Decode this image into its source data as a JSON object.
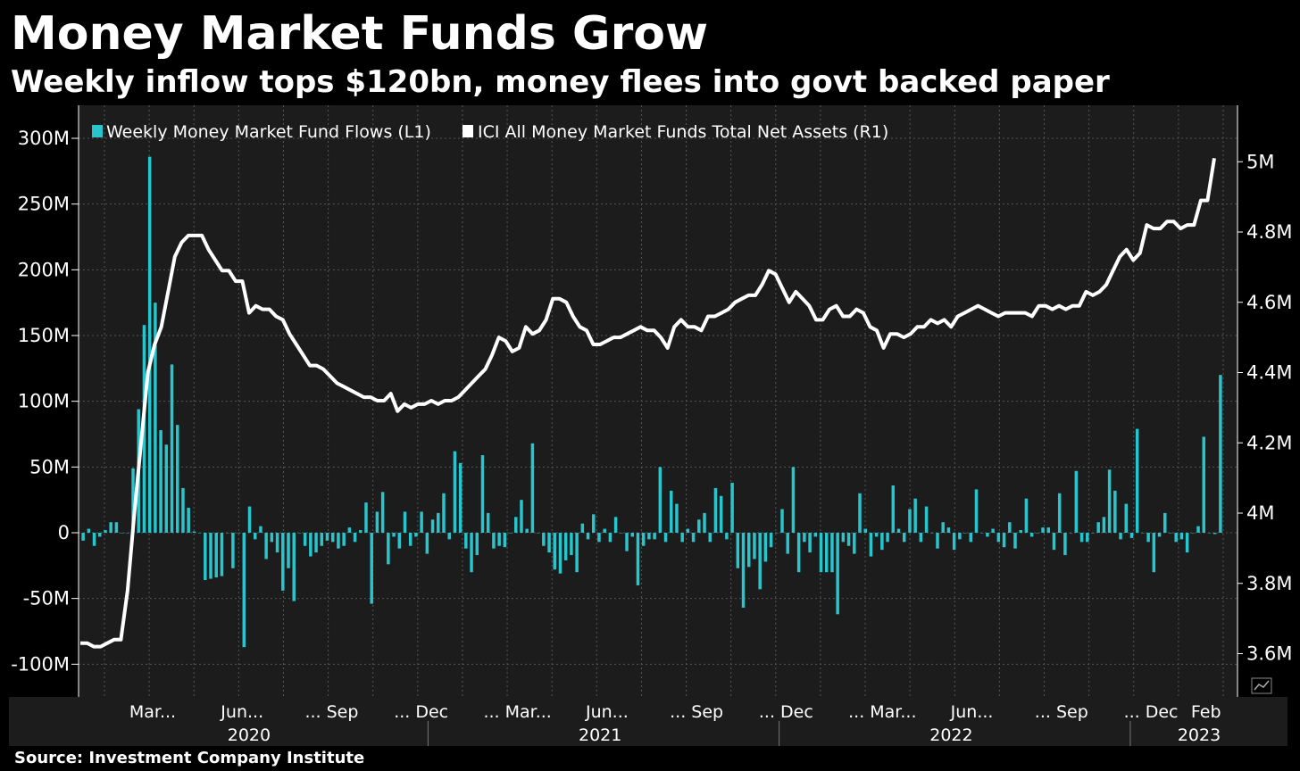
{
  "title": "Money Market Funds Grow",
  "subtitle": "Weekly inflow tops $120bn, money flees into govt backed paper",
  "source": "Source: Investment Company Institute",
  "colors": {
    "flows": "#29c5cc",
    "assets": "#ffffff",
    "background": "#000000",
    "plot": "#1c1c1c",
    "grid": "#555555"
  },
  "icon": "chart-icon",
  "chart_data": {
    "type": "bar-line",
    "legend_position": "top-left",
    "grid": true,
    "legend": [
      "Weekly Money Market Fund Flows (L1)",
      "ICI All Money Market Funds Total Net Assets  (R1)"
    ],
    "y_left": {
      "ticks": [
        300,
        250,
        200,
        150,
        100,
        50,
        0,
        -50,
        -100
      ],
      "labels": [
        "300M",
        "250M",
        "200M",
        "150M",
        "100M",
        "50M",
        "0",
        "-50M",
        "-100M"
      ],
      "range": [
        -125,
        315
      ]
    },
    "y_right": {
      "ticks": [
        5.0,
        4.8,
        4.6,
        4.4,
        4.2,
        4.0,
        3.8,
        3.6
      ],
      "labels": [
        "5M",
        "4.8M",
        "4.6M",
        "4.4M",
        "4.2M",
        "4M",
        "3.8M",
        "3.6M"
      ],
      "range": [
        3.55,
        5.15
      ]
    },
    "x_labels": [
      "Mar...",
      "Jun...",
      "... Sep",
      "... Dec",
      "... Mar...",
      "Jun...",
      "... Sep",
      "... Dec",
      "... Mar...",
      "Jun...",
      "... Sep",
      "... Dec",
      "Feb"
    ],
    "x_label_weeks": [
      10,
      23,
      36,
      49,
      63,
      76,
      89,
      102,
      116,
      129,
      142,
      155,
      163
    ],
    "years": [
      "2020",
      "2021",
      "2022",
      "2023"
    ],
    "year_weeks": [
      24,
      75,
      126,
      162
    ],
    "year_dividers": [
      50,
      101,
      152
    ],
    "weeks_total": 166,
    "series": [
      {
        "name": "Weekly Money Market Fund Flows (L1)",
        "kind": "bar",
        "values": [
          -6,
          3,
          -10,
          -3,
          2,
          8,
          8,
          0,
          0,
          49,
          94,
          158,
          286,
          175,
          78,
          67,
          128,
          82,
          34,
          19,
          1,
          0,
          -36,
          -35,
          -34,
          -33,
          0,
          -27,
          0,
          -87,
          20,
          -5,
          5,
          -20,
          -7,
          -15,
          -44,
          -27,
          -52,
          0,
          -10,
          -18,
          -15,
          -10,
          -6,
          -7,
          -12,
          -10,
          4,
          -7,
          2,
          23,
          -54,
          16,
          31,
          -24,
          -3,
          -12,
          16,
          -10,
          -3,
          16,
          -16,
          10,
          15,
          30,
          -5,
          62,
          53,
          -12,
          -30,
          -17,
          59,
          15,
          -12,
          -10,
          -11,
          0,
          12,
          25,
          3,
          68,
          0,
          -10,
          -15,
          -28,
          -31,
          -21,
          -17,
          -30,
          7,
          -5,
          14,
          -7,
          3,
          -7,
          12,
          0,
          -14,
          -3,
          -40,
          -10,
          -5,
          -5,
          50,
          -7,
          32,
          22,
          -7,
          3,
          -7,
          10,
          15,
          -7,
          34,
          28,
          -5,
          38,
          -27,
          -57,
          -26,
          -20,
          -43,
          -22,
          -11,
          0,
          18,
          -16,
          50,
          -30,
          -7,
          -15,
          -3,
          -30,
          -30,
          -30,
          -62,
          -7,
          -10,
          -16,
          30,
          3,
          -18,
          -3,
          -13,
          -7,
          36,
          3,
          -7,
          18,
          26,
          -7,
          20,
          0,
          -12,
          8,
          4,
          -13,
          -5,
          0,
          -7,
          33,
          0,
          -3,
          3,
          -7,
          -11,
          8,
          -12,
          2,
          26,
          -3,
          0,
          4,
          4,
          -13,
          30,
          -17,
          0,
          47,
          -7,
          -7,
          0,
          8,
          12,
          48,
          32,
          -5,
          22,
          -4,
          79,
          0,
          -7,
          -30,
          -3,
          15,
          0,
          -7,
          -5,
          -15,
          0,
          5,
          73,
          0,
          -1,
          120
        ]
      },
      {
        "name": "ICI All Money Market Funds Total Net Assets  (R1)",
        "kind": "line",
        "values": [
          3.63,
          3.63,
          3.62,
          3.62,
          3.63,
          3.64,
          3.64,
          3.78,
          4.0,
          4.2,
          4.4,
          4.48,
          4.53,
          4.63,
          4.73,
          4.77,
          4.79,
          4.79,
          4.79,
          4.75,
          4.72,
          4.69,
          4.69,
          4.66,
          4.66,
          4.57,
          4.59,
          4.58,
          4.58,
          4.56,
          4.55,
          4.51,
          4.48,
          4.45,
          4.42,
          4.42,
          4.41,
          4.39,
          4.37,
          4.36,
          4.35,
          4.34,
          4.33,
          4.33,
          4.32,
          4.32,
          4.34,
          4.29,
          4.31,
          4.3,
          4.31,
          4.31,
          4.32,
          4.31,
          4.32,
          4.32,
          4.33,
          4.35,
          4.37,
          4.39,
          4.41,
          4.45,
          4.5,
          4.49,
          4.46,
          4.47,
          4.53,
          4.51,
          4.52,
          4.55,
          4.61,
          4.61,
          4.6,
          4.56,
          4.53,
          4.52,
          4.48,
          4.48,
          4.49,
          4.5,
          4.5,
          4.51,
          4.52,
          4.53,
          4.52,
          4.52,
          4.5,
          4.47,
          4.53,
          4.55,
          4.53,
          4.53,
          4.52,
          4.56,
          4.56,
          4.57,
          4.58,
          4.6,
          4.61,
          4.62,
          4.62,
          4.65,
          4.69,
          4.68,
          4.64,
          4.6,
          4.63,
          4.61,
          4.59,
          4.55,
          4.55,
          4.58,
          4.59,
          4.56,
          4.56,
          4.58,
          4.57,
          4.53,
          4.52,
          4.47,
          4.51,
          4.51,
          4.5,
          4.51,
          4.53,
          4.53,
          4.55,
          4.54,
          4.55,
          4.53,
          4.56,
          4.57,
          4.58,
          4.59,
          4.58,
          4.57,
          4.56,
          4.57,
          4.57,
          4.57,
          4.57,
          4.56,
          4.59,
          4.59,
          4.58,
          4.59,
          4.58,
          4.59,
          4.59,
          4.63,
          4.62,
          4.63,
          4.65,
          4.69,
          4.73,
          4.75,
          4.72,
          4.74,
          4.82,
          4.81,
          4.81,
          4.83,
          4.83,
          4.81,
          4.82,
          4.82,
          4.89,
          4.89,
          5.01
        ]
      }
    ]
  }
}
